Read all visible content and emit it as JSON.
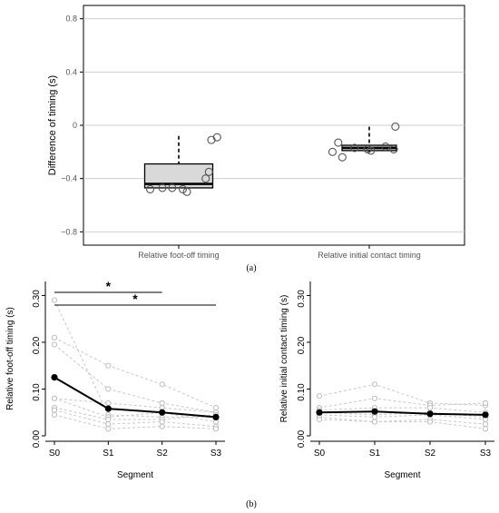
{
  "panel_labels": {
    "a": "(a)",
    "b": "(b)"
  },
  "chart_data": [
    {
      "type": "boxplot",
      "panel": "a",
      "title": "",
      "xlabel": "",
      "ylabel": "Difference of timing (s)",
      "ylim": [
        -0.9,
        0.9
      ],
      "yticks": [
        -0.8,
        -0.4,
        0,
        0.4,
        0.8
      ],
      "ytick_labels": [
        "−0.8",
        "−0.4",
        "0",
        "0.4",
        "0.8"
      ],
      "grid": "horizontal",
      "categories": [
        "Relative foot-off timing",
        "Relative initial contact timing"
      ],
      "boxes": [
        {
          "name": "Relative foot-off timing",
          "whisker_low": -0.47,
          "q1": -0.47,
          "median": -0.44,
          "q3": -0.29,
          "whisker_high": -0.08,
          "fill": "#d9d9d9"
        },
        {
          "name": "Relative initial contact timing",
          "whisker_low": -0.2,
          "q1": -0.19,
          "median": -0.17,
          "q3": -0.15,
          "whisker_high": -0.01,
          "fill": "#d9d9d9"
        }
      ],
      "points": [
        {
          "category": 0,
          "offset": -0.35,
          "y": -0.48
        },
        {
          "category": 0,
          "offset": -0.2,
          "y": -0.47
        },
        {
          "category": 0,
          "offset": -0.08,
          "y": -0.47
        },
        {
          "category": 0,
          "offset": 0.05,
          "y": -0.48
        },
        {
          "category": 0,
          "offset": 0.1,
          "y": -0.5
        },
        {
          "category": 0,
          "offset": 0.33,
          "y": -0.4
        },
        {
          "category": 0,
          "offset": 0.37,
          "y": -0.35
        },
        {
          "category": 0,
          "offset": 0.4,
          "y": -0.11
        },
        {
          "category": 0,
          "offset": 0.47,
          "y": -0.09
        },
        {
          "category": 1,
          "offset": -0.45,
          "y": -0.2
        },
        {
          "category": 1,
          "offset": -0.38,
          "y": -0.13
        },
        {
          "category": 1,
          "offset": -0.33,
          "y": -0.24
        },
        {
          "category": 1,
          "offset": -0.18,
          "y": -0.17
        },
        {
          "category": 1,
          "offset": -0.02,
          "y": -0.18
        },
        {
          "category": 1,
          "offset": 0.02,
          "y": -0.19
        },
        {
          "category": 1,
          "offset": 0.2,
          "y": -0.16
        },
        {
          "category": 1,
          "offset": 0.3,
          "y": -0.18
        },
        {
          "category": 1,
          "offset": 0.32,
          "y": -0.01
        }
      ]
    },
    {
      "type": "line",
      "panel": "b-left",
      "title": "",
      "xlabel": "Segment",
      "ylabel": "Relative foot-off timing (s)",
      "categories": [
        "S0",
        "S1",
        "S2",
        "S3"
      ],
      "ylim": [
        0,
        0.33
      ],
      "yticks": [
        0.0,
        0.1,
        0.2,
        0.3
      ],
      "ytick_labels": [
        "0.00",
        "0.10",
        "0.20",
        "0.30"
      ],
      "individuals": [
        [
          0.29,
          0.045,
          0.04,
          0.04
        ],
        [
          0.21,
          0.15,
          0.11,
          0.06
        ],
        [
          0.195,
          0.1,
          0.07,
          0.05
        ],
        [
          0.08,
          0.07,
          0.06,
          0.05
        ],
        [
          0.08,
          0.04,
          0.05,
          0.03
        ],
        [
          0.06,
          0.035,
          0.035,
          0.045
        ],
        [
          0.055,
          0.025,
          0.03,
          0.02
        ],
        [
          0.045,
          0.015,
          0.02,
          0.015
        ]
      ],
      "mean": [
        0.125,
        0.058,
        0.05,
        0.04
      ],
      "significance": [
        {
          "from": "S0",
          "to": "S2",
          "label": "*"
        },
        {
          "from": "S0",
          "to": "S3",
          "label": "*"
        }
      ]
    },
    {
      "type": "line",
      "panel": "b-right",
      "title": "",
      "xlabel": "Segment",
      "ylabel": "Relative initial contact timing (s)",
      "categories": [
        "S0",
        "S1",
        "S2",
        "S3"
      ],
      "ylim": [
        0,
        0.33
      ],
      "yticks": [
        0.0,
        0.1,
        0.2,
        0.3
      ],
      "ytick_labels": [
        "0.00",
        "0.10",
        "0.20",
        "0.30"
      ],
      "individuals": [
        [
          0.085,
          0.11,
          0.07,
          0.065
        ],
        [
          0.06,
          0.08,
          0.065,
          0.07
        ],
        [
          0.055,
          0.06,
          0.06,
          0.05
        ],
        [
          0.05,
          0.045,
          0.05,
          0.04
        ],
        [
          0.045,
          0.04,
          0.045,
          0.035
        ],
        [
          0.04,
          0.03,
          0.035,
          0.025
        ],
        [
          0.035,
          0.03,
          0.03,
          0.015
        ]
      ],
      "mean": [
        0.05,
        0.052,
        0.047,
        0.045
      ]
    }
  ]
}
